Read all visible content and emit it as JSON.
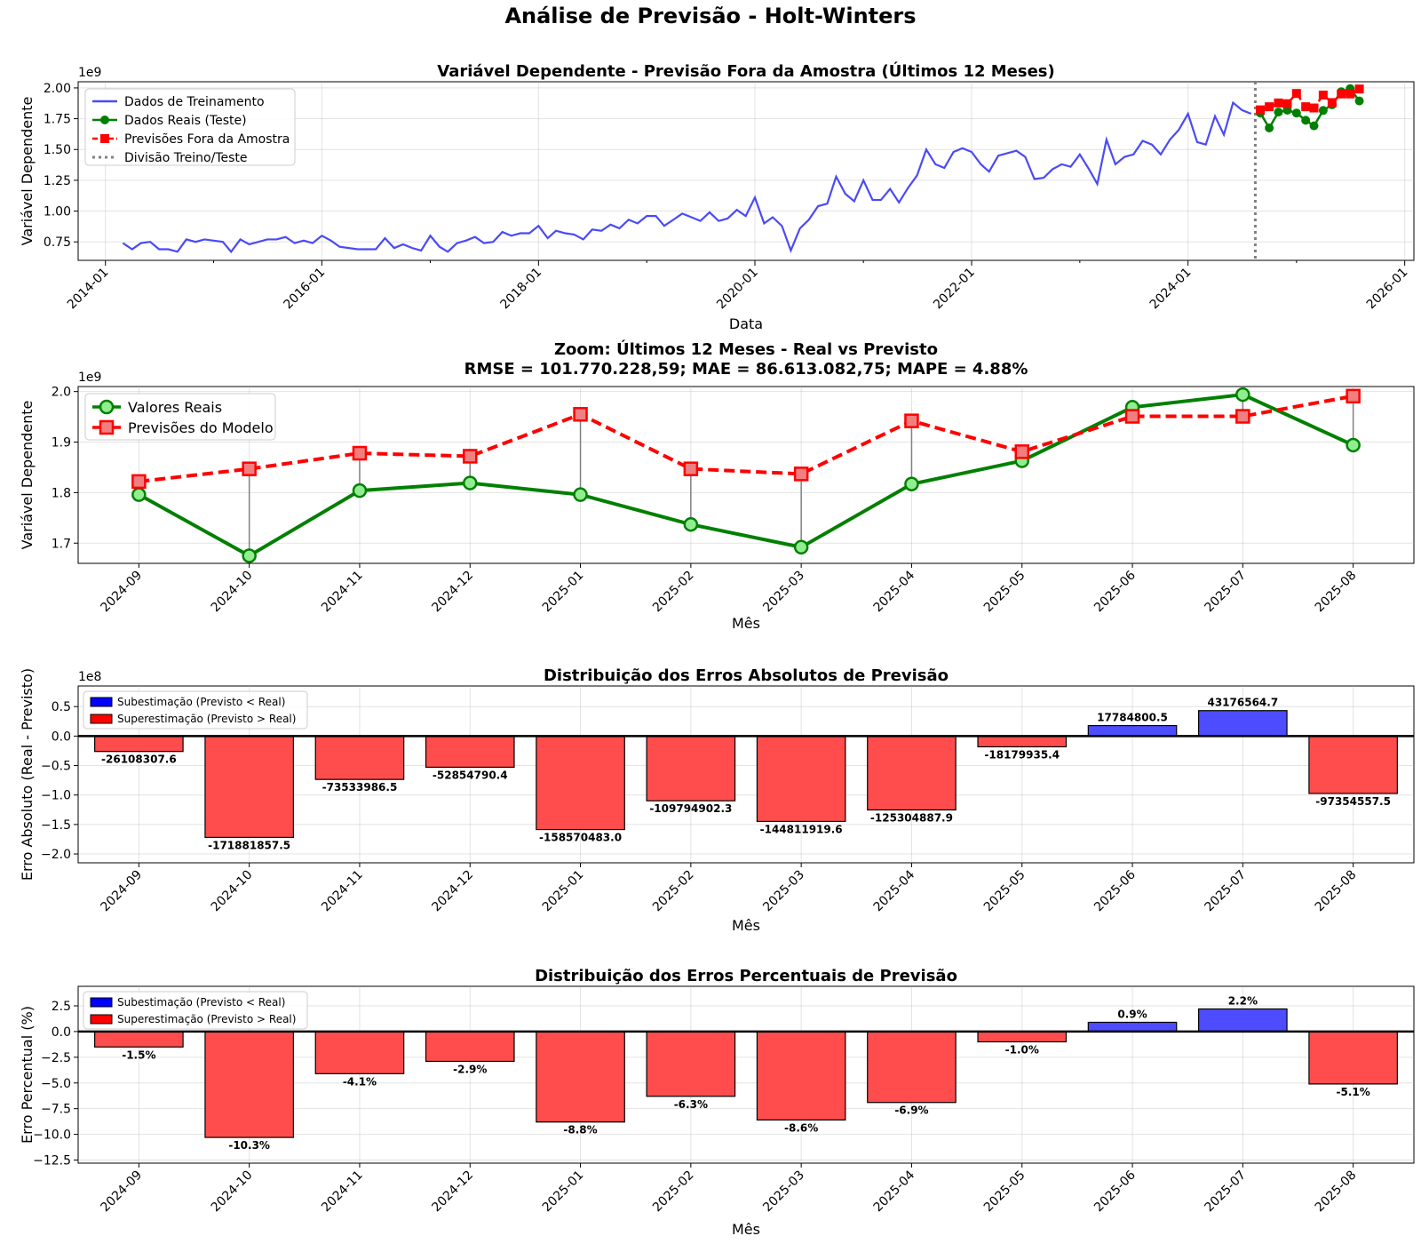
{
  "figure": {
    "title": "Análise de Previsão - Holt-Winters"
  },
  "chart_data": [
    {
      "type": "line",
      "title": "Variável Dependente - Previsão Fora da Amostra (Últimos 12 Meses)",
      "xlabel": "Data",
      "ylabel": "Variável Dependente",
      "y_offset_label": "1e9",
      "y_scale": 1000000000,
      "xlim": [
        "2013-10-01",
        "2026-02-01"
      ],
      "ylim": [
        0.6,
        2.05
      ],
      "yticks": [
        0.75,
        1.0,
        1.25,
        1.5,
        1.75,
        2.0
      ],
      "ytick_labels": [
        "0.75",
        "1.00",
        "1.25",
        "1.50",
        "1.75",
        "2.00"
      ],
      "xticks": [
        "2014-01-01",
        "2016-01-01",
        "2018-01-01",
        "2020-01-01",
        "2022-01-01",
        "2024-01-01",
        "2026-01-01"
      ],
      "xtick_labels": [
        "2014-01",
        "2016-01",
        "2018-01",
        "2020-01",
        "2022-01",
        "2024-01",
        "2026-01"
      ],
      "grid": true,
      "legend_position": "upper-left",
      "split_date": "2024-08-15",
      "series": [
        {
          "name": "Dados de Treinamento",
          "color": "#4a4af7",
          "style": "solid",
          "start": "2014-03-01",
          "values": [
            0.74,
            0.69,
            0.74,
            0.75,
            0.69,
            0.69,
            0.67,
            0.77,
            0.75,
            0.77,
            0.76,
            0.75,
            0.67,
            0.77,
            0.73,
            0.75,
            0.77,
            0.77,
            0.79,
            0.74,
            0.76,
            0.74,
            0.8,
            0.76,
            0.71,
            0.7,
            0.69,
            0.69,
            0.69,
            0.78,
            0.7,
            0.73,
            0.7,
            0.68,
            0.8,
            0.71,
            0.67,
            0.74,
            0.76,
            0.79,
            0.74,
            0.75,
            0.83,
            0.8,
            0.82,
            0.82,
            0.88,
            0.78,
            0.84,
            0.82,
            0.81,
            0.77,
            0.85,
            0.84,
            0.89,
            0.86,
            0.93,
            0.9,
            0.96,
            0.96,
            0.88,
            0.93,
            0.98,
            0.95,
            0.92,
            0.99,
            0.92,
            0.94,
            1.01,
            0.96,
            1.11,
            0.9,
            0.95,
            0.88,
            0.68,
            0.86,
            0.93,
            1.04,
            1.06,
            1.28,
            1.14,
            1.08,
            1.25,
            1.09,
            1.09,
            1.18,
            1.07,
            1.19,
            1.29,
            1.5,
            1.38,
            1.35,
            1.48,
            1.51,
            1.48,
            1.38,
            1.32,
            1.45,
            1.47,
            1.49,
            1.44,
            1.26,
            1.27,
            1.34,
            1.38,
            1.36,
            1.46,
            1.34,
            1.22,
            1.58,
            1.38,
            1.44,
            1.46,
            1.57,
            1.54,
            1.46,
            1.58,
            1.66,
            1.79,
            1.56,
            1.54,
            1.77,
            1.62,
            1.88,
            1.82,
            1.79
          ]
        },
        {
          "name": "Dados Reais (Teste)",
          "color": "#008000",
          "style": "solid-marker-circle",
          "dates": [
            "2024-09",
            "2024-10",
            "2024-11",
            "2024-12",
            "2025-01",
            "2025-02",
            "2025-03",
            "2025-04",
            "2025-05",
            "2025-06",
            "2025-07",
            "2025-08"
          ],
          "values": [
            1.796,
            1.675,
            1.804,
            1.819,
            1.796,
            1.737,
            1.692,
            1.817,
            1.863,
            1.969,
            1.994,
            1.894
          ]
        },
        {
          "name": "Previsões Fora da Amostra",
          "color": "#ff0000",
          "style": "dashed-marker-square",
          "dates": [
            "2024-09",
            "2024-10",
            "2024-11",
            "2024-12",
            "2025-01",
            "2025-02",
            "2025-03",
            "2025-04",
            "2025-05",
            "2025-06",
            "2025-07",
            "2025-08"
          ],
          "values": [
            1.822,
            1.847,
            1.878,
            1.872,
            1.955,
            1.847,
            1.837,
            1.942,
            1.881,
            1.951,
            1.951,
            1.991
          ]
        },
        {
          "name": "Divisão Treino/Teste",
          "color": "#808080",
          "style": "dotted-vertical"
        }
      ]
    },
    {
      "type": "line",
      "title": "Zoom: Últimos 12 Meses - Real vs Previsto",
      "subtitle": "RMSE = 101.770.228,59; MAE = 86.613.082,75; MAPE = 4.88%",
      "xlabel": "Mês",
      "ylabel": "Variável Dependente",
      "y_offset_label": "1e9",
      "ylim": [
        1.66,
        2.01
      ],
      "yticks": [
        1.7,
        1.8,
        1.9,
        2.0
      ],
      "ytick_labels": [
        "1.7",
        "1.8",
        "1.9",
        "2.0"
      ],
      "categories": [
        "2024-09",
        "2024-10",
        "2024-11",
        "2024-12",
        "2025-01",
        "2025-02",
        "2025-03",
        "2025-04",
        "2025-05",
        "2025-06",
        "2025-07",
        "2025-08"
      ],
      "grid": true,
      "legend_position": "upper-left",
      "series": [
        {
          "name": "Valores Reais",
          "color": "#008000",
          "marker_fill": "#90ee90",
          "values": [
            1.796,
            1.675,
            1.804,
            1.819,
            1.796,
            1.737,
            1.692,
            1.817,
            1.863,
            1.969,
            1.994,
            1.894
          ]
        },
        {
          "name": "Previsões do Modelo",
          "color": "#ff0000",
          "marker_fill": "#f08080",
          "values": [
            1.822,
            1.847,
            1.878,
            1.872,
            1.955,
            1.847,
            1.837,
            1.942,
            1.881,
            1.951,
            1.951,
            1.991
          ]
        }
      ]
    },
    {
      "type": "bar",
      "title": "Distribuição dos Erros Absolutos de Previsão",
      "xlabel": "Mês",
      "ylabel": "Erro Absoluto (Real - Previsto)",
      "y_offset_label": "1e8",
      "ylim": [
        -2.15,
        0.85
      ],
      "yticks": [
        -2.0,
        -1.5,
        -1.0,
        -0.5,
        0.0,
        0.5
      ],
      "ytick_labels": [
        "−2.0",
        "−1.5",
        "−1.0",
        "−0.5",
        "0.0",
        "0.5"
      ],
      "categories": [
        "2024-09",
        "2024-10",
        "2024-11",
        "2024-12",
        "2025-01",
        "2025-02",
        "2025-03",
        "2025-04",
        "2025-05",
        "2025-06",
        "2025-07",
        "2025-08"
      ],
      "values": [
        -26108307.6,
        -171881857.5,
        -73533986.5,
        -52854790.4,
        -158570483.0,
        -109794902.3,
        -144811919.6,
        -125304887.9,
        -18179935.4,
        17784800.5,
        43176564.7,
        -97354557.5
      ],
      "labels": [
        "-26108307.6",
        "-171881857.5",
        "-73533986.5",
        "-52854790.4",
        "-158570483.0",
        "-109794902.3",
        "-144811919.6",
        "-125304887.9",
        "-18179935.4",
        "17784800.5",
        "43176564.7",
        "-97354557.5"
      ],
      "grid": true,
      "legend_position": "upper-left",
      "legend": [
        {
          "name": "Subestimação (Previsto < Real)",
          "color": "#0000ff"
        },
        {
          "name": "Superestimação (Previsto > Real)",
          "color": "#ff0000"
        }
      ],
      "colors": {
        "positive": "#4d4dff",
        "negative": "#ff4d4d"
      }
    },
    {
      "type": "bar",
      "title": "Distribuição dos Erros Percentuais de Previsão",
      "xlabel": "Mês",
      "ylabel": "Erro Percentual (%)",
      "ylim": [
        -12.8,
        4.4
      ],
      "yticks": [
        -12.5,
        -10.0,
        -7.5,
        -5.0,
        -2.5,
        0.0,
        2.5
      ],
      "ytick_labels": [
        "−12.5",
        "−10.0",
        "−7.5",
        "−5.0",
        "−2.5",
        "0.0",
        "2.5"
      ],
      "categories": [
        "2024-09",
        "2024-10",
        "2024-11",
        "2024-12",
        "2025-01",
        "2025-02",
        "2025-03",
        "2025-04",
        "2025-05",
        "2025-06",
        "2025-07",
        "2025-08"
      ],
      "values": [
        -1.5,
        -10.3,
        -4.1,
        -2.9,
        -8.8,
        -6.3,
        -8.6,
        -6.9,
        -1.0,
        0.9,
        2.2,
        -5.1
      ],
      "labels": [
        "-1.5%",
        "-10.3%",
        "-4.1%",
        "-2.9%",
        "-8.8%",
        "-6.3%",
        "-8.6%",
        "-6.9%",
        "-1.0%",
        "0.9%",
        "2.2%",
        "-5.1%"
      ],
      "grid": true,
      "legend_position": "upper-left",
      "legend": [
        {
          "name": "Subestimação (Previsto < Real)",
          "color": "#0000ff"
        },
        {
          "name": "Superestimação (Previsto > Real)",
          "color": "#ff0000"
        }
      ],
      "colors": {
        "positive": "#4d4dff",
        "negative": "#ff4d4d"
      }
    }
  ]
}
